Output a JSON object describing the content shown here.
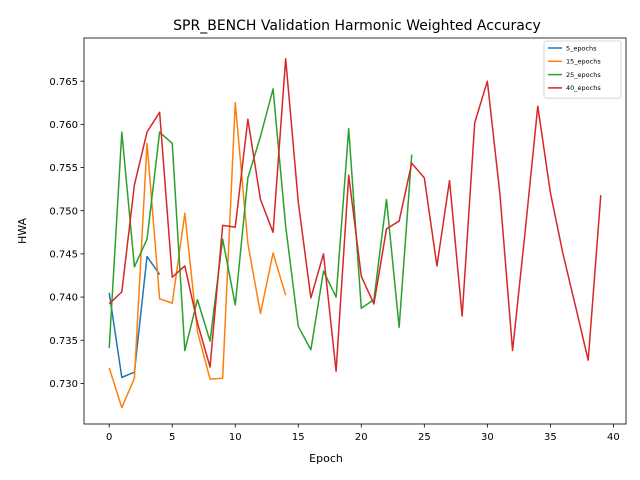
{
  "chart_data": {
    "type": "line",
    "title": "SPR_BENCH Validation Harmonic Weighted Accuracy",
    "xlabel": "Epoch",
    "ylabel": "HWA",
    "xlim": [
      -2.0,
      41.0
    ],
    "ylim": [
      0.7253,
      0.77
    ],
    "xticks": [
      0,
      5,
      10,
      15,
      20,
      25,
      30,
      35,
      40
    ],
    "yticks": [
      0.73,
      0.735,
      0.74,
      0.745,
      0.75,
      0.755,
      0.76,
      0.765
    ],
    "ytick_labels": [
      "0.730",
      "0.735",
      "0.740",
      "0.745",
      "0.750",
      "0.755",
      "0.760",
      "0.765"
    ],
    "grid": false,
    "legend_position": "top-right",
    "series": [
      {
        "name": "5_epochs",
        "color": "#1f77b4",
        "x": [
          0,
          1,
          2,
          3,
          4
        ],
        "y": [
          0.7405,
          0.7307,
          0.7313,
          0.7447,
          0.7426
        ]
      },
      {
        "name": "15_epochs",
        "color": "#ff7f0e",
        "x": [
          0,
          1,
          2,
          3,
          4,
          5,
          6,
          7,
          8,
          9,
          10,
          11,
          12,
          13,
          14
        ],
        "y": [
          0.7318,
          0.7272,
          0.7306,
          0.7578,
          0.7398,
          0.7393,
          0.7497,
          0.736,
          0.7305,
          0.7306,
          0.7625,
          0.7462,
          0.7381,
          0.7451,
          0.7402
        ]
      },
      {
        "name": "25_epochs",
        "color": "#2ca02c",
        "x": [
          0,
          1,
          2,
          3,
          4,
          5,
          6,
          7,
          8,
          9,
          10,
          11,
          12,
          13,
          14,
          15,
          16,
          17,
          18,
          19,
          20,
          21,
          22,
          23,
          24
        ],
        "y": [
          0.7341,
          0.7591,
          0.7435,
          0.7467,
          0.7591,
          0.7578,
          0.7338,
          0.7397,
          0.7349,
          0.7467,
          0.7391,
          0.7538,
          0.7586,
          0.7641,
          0.7482,
          0.7366,
          0.7339,
          0.743,
          0.74,
          0.7595,
          0.7387,
          0.7397,
          0.7513,
          0.7365,
          0.7565
        ]
      },
      {
        "name": "40_epochs",
        "color": "#d62728",
        "x": [
          0,
          1,
          2,
          3,
          4,
          5,
          6,
          7,
          8,
          9,
          10,
          11,
          12,
          13,
          14,
          15,
          16,
          17,
          18,
          19,
          20,
          21,
          22,
          23,
          24,
          25,
          26,
          27,
          28,
          29,
          30,
          31,
          32,
          33,
          34,
          35,
          36,
          37,
          38,
          39
        ],
        "y": [
          0.7392,
          0.7406,
          0.753,
          0.7591,
          0.7614,
          0.7423,
          0.7436,
          0.737,
          0.7319,
          0.7483,
          0.7481,
          0.7606,
          0.7513,
          0.7475,
          0.7676,
          0.751,
          0.7399,
          0.745,
          0.7314,
          0.7541,
          0.7424,
          0.7392,
          0.7479,
          0.7488,
          0.7555,
          0.7538,
          0.7436,
          0.7535,
          0.7378,
          0.7602,
          0.765,
          0.7519,
          0.7338,
          0.7476,
          0.7621,
          0.7521,
          0.745,
          0.7389,
          0.7327,
          0.7518
        ]
      }
    ]
  }
}
